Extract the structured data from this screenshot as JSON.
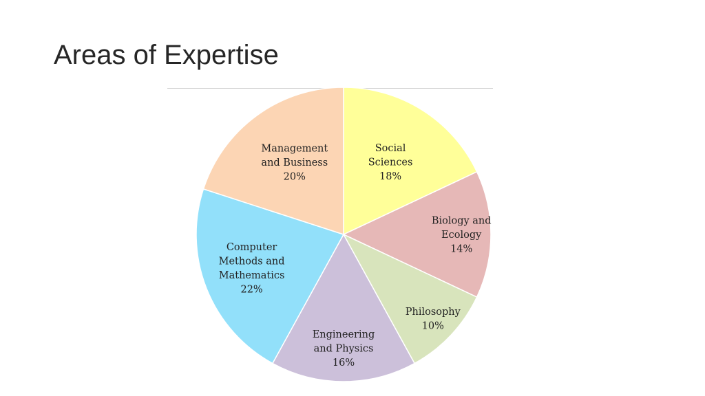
{
  "slide": {
    "title": "Areas of Expertise"
  },
  "chart_data": {
    "type": "pie",
    "start_angle_deg": 0,
    "direction": "clockwise",
    "slices": [
      {
        "label_lines": [
          "Social",
          "Sciences"
        ],
        "percent_label": "18%",
        "value": 18,
        "color": "#ffff99"
      },
      {
        "label_lines": [
          "Biology and",
          "Ecology"
        ],
        "percent_label": "14%",
        "value": 14,
        "color": "#e6b8b7"
      },
      {
        "label_lines": [
          "Philosophy"
        ],
        "percent_label": "10%",
        "value": 10,
        "color": "#d8e4bc"
      },
      {
        "label_lines": [
          "Engineering",
          "and Physics"
        ],
        "percent_label": "16%",
        "value": 16,
        "color": "#ccc0da"
      },
      {
        "label_lines": [
          "Computer",
          "Methods and",
          "Mathematics"
        ],
        "percent_label": "22%",
        "value": 22,
        "color": "#92e0fa"
      },
      {
        "label_lines": [
          "Management",
          "and Business"
        ],
        "percent_label": "20%",
        "value": 20,
        "color": "#fcd5b4"
      }
    ]
  }
}
